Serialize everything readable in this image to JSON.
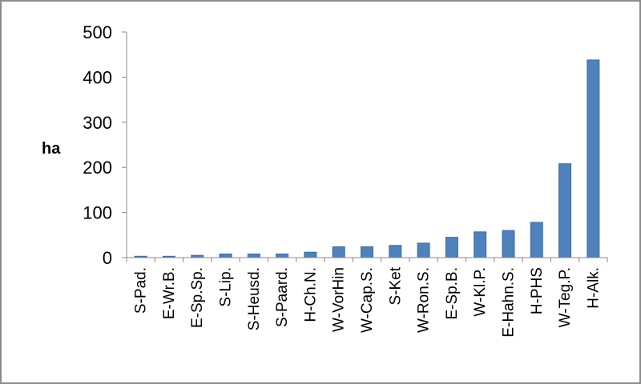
{
  "chart_data": {
    "type": "bar",
    "title": "",
    "xlabel": "",
    "ylabel": "ha",
    "ylim": [
      0,
      500
    ],
    "yticks": [
      0,
      100,
      200,
      300,
      400,
      500
    ],
    "grid": false,
    "legend": "none",
    "bar_color": "#4f81bd",
    "categories": [
      "S-Pad.",
      "E-Wr.B.",
      "E-Sp.Sp.",
      "S-Lip.",
      "S-Heusd.",
      "S-Paard.",
      "H-Ch.N.",
      "W-VorHin",
      "W-Cap.S.",
      "S-Ket",
      "W-Ron.S.",
      "E-Sp.B.",
      "W-Kl.P.",
      "E-Hahn.S.",
      "H-PHS",
      "W-Teg.P.",
      "H-Alk."
    ],
    "values": [
      3,
      3,
      5,
      8,
      8,
      8,
      12,
      24,
      24,
      27,
      32,
      45,
      57,
      60,
      78,
      208,
      438
    ]
  }
}
